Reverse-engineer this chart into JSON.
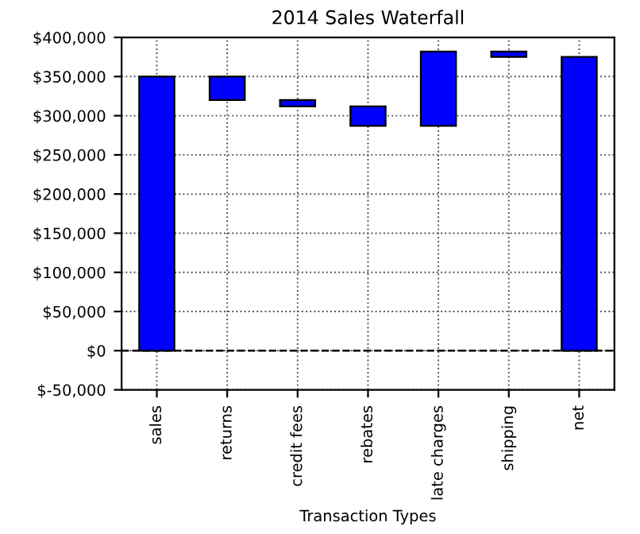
{
  "chart_data": {
    "type": "bar",
    "title": "2014 Sales Waterfall",
    "xlabel": "Transaction Types",
    "categories": [
      "sales",
      "returns",
      "credit fees",
      "rebates",
      "late charges",
      "shipping",
      "net"
    ],
    "values": [
      350000,
      -30000,
      -8000,
      -25000,
      95000,
      -7000,
      375000
    ],
    "base": [
      0,
      350000,
      320000,
      312000,
      287000,
      382000,
      0
    ],
    "color": "#0000ff",
    "ylim": [
      -50000,
      400000
    ],
    "yticks": [
      {
        "value": -50000,
        "label": "$-50,000"
      },
      {
        "value": 0,
        "label": "$0"
      },
      {
        "value": 50000,
        "label": "$50,000"
      },
      {
        "value": 100000,
        "label": "$100,000"
      },
      {
        "value": 150000,
        "label": "$150,000"
      },
      {
        "value": 200000,
        "label": "$200,000"
      },
      {
        "value": 250000,
        "label": "$250,000"
      },
      {
        "value": 300000,
        "label": "$300,000"
      },
      {
        "value": 350000,
        "label": "$350,000"
      },
      {
        "value": 400000,
        "label": "$400,000"
      }
    ],
    "ref_lines": [
      {
        "axis": "y",
        "value": 0,
        "label": null,
        "color": "#000000",
        "line_style": "dashed"
      }
    ],
    "grid": true
  }
}
